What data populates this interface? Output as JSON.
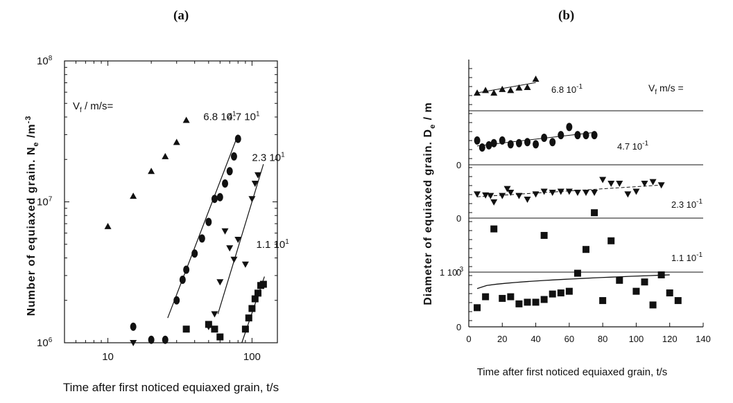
{
  "panels": {
    "a_label": "(a)",
    "b_label": "(b)"
  },
  "chart_data": [
    {
      "type": "scatter",
      "panel": "(a)",
      "xlabel": "Time after first noticed equiaxed grain, t/s",
      "ylabel": "Number of equiaxed grain. N",
      "ylabel_sub": "e",
      "ylabel_unit": " /m",
      "ylabel_sup": "-3",
      "x_scale": "log",
      "y_scale": "log",
      "xlim": [
        5,
        150
      ],
      "ylim": [
        1000000,
        100000000
      ],
      "x_tick_labels": [
        {
          "x": 10,
          "label": "10"
        },
        {
          "x": 100,
          "label": "100"
        }
      ],
      "y_tick_labels": [
        {
          "y": 1000000,
          "base": "10",
          "exp": "6"
        },
        {
          "y": 10000000,
          "base": "10",
          "exp": "7"
        },
        {
          "y": 100000000,
          "base": "10",
          "exp": "8"
        }
      ],
      "legend_title": {
        "main": "V",
        "sub": "f",
        "rest": " / m/s="
      },
      "series": [
        {
          "name": "6.8 10",
          "sup": "1",
          "marker": "triangle-up",
          "x": [
            10,
            15,
            20,
            25,
            30,
            35
          ],
          "y": [
            6700000,
            11000000,
            16500000,
            21000000,
            26500000,
            38000000
          ],
          "fit": null,
          "label_pos": [
            46,
            38000000
          ]
        },
        {
          "name": "4.7 10",
          "sup": "1",
          "marker": "circle",
          "x": [
            15,
            20,
            25,
            30,
            33,
            35,
            40,
            45,
            50,
            55,
            60,
            65,
            70,
            75,
            80
          ],
          "y": [
            1300000,
            1050000,
            1050000,
            2000000,
            2800000,
            3300000,
            4300000,
            5500000,
            7200000,
            10500000,
            10800000,
            13500000,
            16500000,
            21000000,
            28000000
          ],
          "fit": {
            "x": [
              26,
              80
            ],
            "y": [
              1500000,
              30000000
            ]
          },
          "label_pos": [
            67,
            38000000
          ]
        },
        {
          "name": "2.3 10",
          "sup": "1",
          "marker": "triangle-down",
          "x": [
            15,
            50,
            55,
            60,
            65,
            70,
            75,
            80,
            90,
            100,
            105,
            110
          ],
          "y": [
            1000000,
            1300000,
            1600000,
            2700000,
            6200000,
            4700000,
            3900000,
            5400000,
            3600000,
            10500000,
            13500000,
            15500000
          ],
          "fit": {
            "x": [
              58,
              120
            ],
            "y": [
              1600000,
              18500000
            ]
          },
          "label_pos": [
            100,
            19500000
          ]
        },
        {
          "name": "1.1 10",
          "sup": "1",
          "marker": "square",
          "x": [
            35,
            50,
            55,
            60,
            90,
            95,
            100,
            105,
            110,
            115,
            120
          ],
          "y": [
            1250000,
            1350000,
            1250000,
            1100000,
            1250000,
            1500000,
            1750000,
            2050000,
            2250000,
            2550000,
            2600000
          ],
          "fit": {
            "x": [
              85,
              122
            ],
            "y": [
              1000000,
              2950000
            ]
          },
          "label_pos": [
            107,
            4700000
          ]
        }
      ]
    },
    {
      "type": "scatter",
      "panel": "(b)",
      "xlabel": "Time after first noticed equiaxed grain, t/s",
      "ylabel": "Diameter of equiaxed grain. D",
      "ylabel_sub": "e",
      "ylabel_unit": " / m",
      "x_scale": "linear",
      "xlim": [
        0,
        140
      ],
      "x_ticks": [
        0,
        20,
        40,
        60,
        80,
        100,
        120,
        140
      ],
      "legend_title": {
        "main": "V",
        "sub": "f",
        "rest": " m/s ="
      },
      "bands": [
        {
          "name": "6.8 10",
          "sup": "-1",
          "marker": "triangle-up",
          "x": [
            5,
            10,
            15,
            20,
            25,
            30,
            35,
            40
          ],
          "y": [
            0.35,
            0.4,
            0.35,
            0.42,
            0.4,
            0.45,
            0.46,
            0.62
          ],
          "fit": {
            "x": [
              5,
              40
            ],
            "y": [
              0.35,
              0.55
            ]
          },
          "y_tick_labels": []
        },
        {
          "name": "4.7 10",
          "sup": "-1",
          "marker": "circle",
          "x": [
            5,
            8,
            12,
            15,
            20,
            25,
            30,
            35,
            40,
            45,
            50,
            55,
            60,
            65,
            70,
            75
          ],
          "y": [
            0.45,
            0.32,
            0.36,
            0.4,
            0.45,
            0.38,
            0.4,
            0.42,
            0.38,
            0.5,
            0.42,
            0.55,
            0.7,
            0.55,
            0.55,
            0.55
          ],
          "fit": {
            "x": [
              5,
              75
            ],
            "y": [
              0.35,
              0.6
            ]
          },
          "y_tick_labels": [
            {
              "pos": 0,
              "label": "0"
            }
          ]
        },
        {
          "name": "2.3 10",
          "sup": "-1",
          "marker": "triangle-down",
          "x": [
            5,
            10,
            13,
            15,
            20,
            23,
            25,
            30,
            35,
            40,
            45,
            50,
            55,
            60,
            65,
            70,
            75,
            80,
            85,
            90,
            95,
            100,
            105,
            110,
            115
          ],
          "y": [
            0.45,
            0.43,
            0.42,
            0.3,
            0.42,
            0.55,
            0.48,
            0.42,
            0.35,
            0.45,
            0.5,
            0.48,
            0.5,
            0.5,
            0.48,
            0.48,
            0.48,
            0.72,
            0.65,
            0.65,
            0.45,
            0.5,
            0.65,
            0.68,
            0.62
          ],
          "fit": {
            "x": [
              5,
              115
            ],
            "y": [
              0.4,
              0.62
            ]
          },
          "y_tick_labels": [
            {
              "pos": 0,
              "label": "0"
            }
          ]
        },
        {
          "name": "1.1 10",
          "sup": "-1",
          "marker": "square",
          "x": [
            15,
            45,
            70,
            75,
            85
          ],
          "y": [
            0.8,
            0.68,
            0.42,
            1.1,
            0.58
          ],
          "fit": null,
          "y_tick_labels": [
            {
              "pos": 0,
              "label": "0"
            }
          ]
        },
        {
          "name": "",
          "sup": "",
          "marker": "square",
          "x": [
            5,
            10,
            20,
            25,
            30,
            35,
            40,
            45,
            50,
            55,
            60,
            65,
            80,
            90,
            100,
            105,
            110,
            115,
            120,
            125
          ],
          "y": [
            0.35,
            0.55,
            0.52,
            0.55,
            0.42,
            0.45,
            0.45,
            0.5,
            0.6,
            0.62,
            0.65,
            0.98,
            0.48,
            0.85,
            0.65,
            0.82,
            0.4,
            0.95,
            0.62,
            0.48
          ],
          "fit": {
            "x": [
              5,
              120
            ],
            "y": [
              0.7,
              0.95
            ]
          },
          "y_tick_labels": [
            {
              "pos": 0,
              "label": "0"
            },
            {
              "pos": 1,
              "label": "1 10",
              "sup": "-3"
            }
          ]
        }
      ]
    }
  ]
}
